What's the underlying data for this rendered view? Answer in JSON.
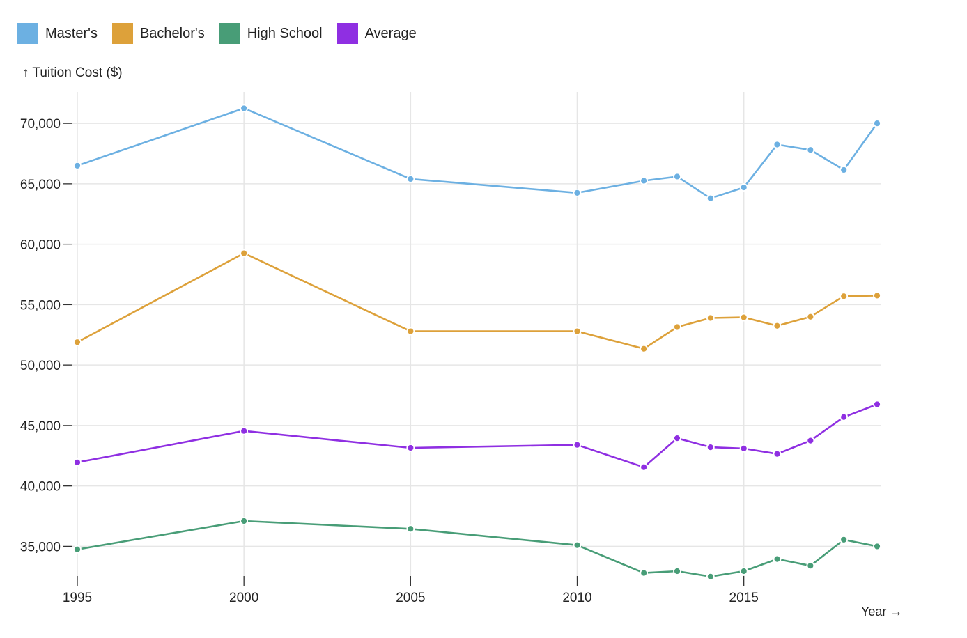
{
  "chart_data": {
    "type": "line",
    "xlabel": "Year →",
    "ylabel": "↑ Tuition Cost ($)",
    "x": [
      1995,
      2000,
      2005,
      2010,
      2012,
      2013,
      2014,
      2015,
      2016,
      2017,
      2018,
      2019
    ],
    "xlim": [
      1995,
      2019
    ],
    "ylim": [
      32200,
      72600
    ],
    "x_ticks": [
      "1995",
      "2000",
      "2005",
      "2010",
      "2015"
    ],
    "x_tick_values": [
      1995,
      2000,
      2005,
      2010,
      2015
    ],
    "y_ticks": [
      "70,000",
      "65,000",
      "60,000",
      "55,000",
      "50,000",
      "45,000",
      "40,000",
      "35,000"
    ],
    "y_tick_values": [
      70000,
      65000,
      60000,
      55000,
      50000,
      45000,
      40000,
      35000
    ],
    "grid": true,
    "legend_position": "top-left",
    "series": [
      {
        "name": "Master's",
        "color": "#6cb0e2",
        "values": [
          66500,
          71250,
          65400,
          64250,
          65250,
          65600,
          63800,
          64700,
          68250,
          67800,
          66150,
          70000
        ]
      },
      {
        "name": "Bachelor's",
        "color": "#dda13a",
        "values": [
          51900,
          59250,
          52800,
          52800,
          51350,
          53150,
          53900,
          53950,
          53250,
          54000,
          55700,
          55750
        ]
      },
      {
        "name": "High School",
        "color": "#489d77",
        "values": [
          34750,
          37100,
          36450,
          35100,
          32800,
          32950,
          32500,
          32950,
          33950,
          33400,
          35550,
          35000
        ]
      },
      {
        "name": "Average",
        "color": "#8f2fe2",
        "values": [
          41950,
          44550,
          43150,
          43400,
          41550,
          43950,
          43200,
          43100,
          42650,
          43750,
          45700,
          46750
        ]
      }
    ]
  }
}
